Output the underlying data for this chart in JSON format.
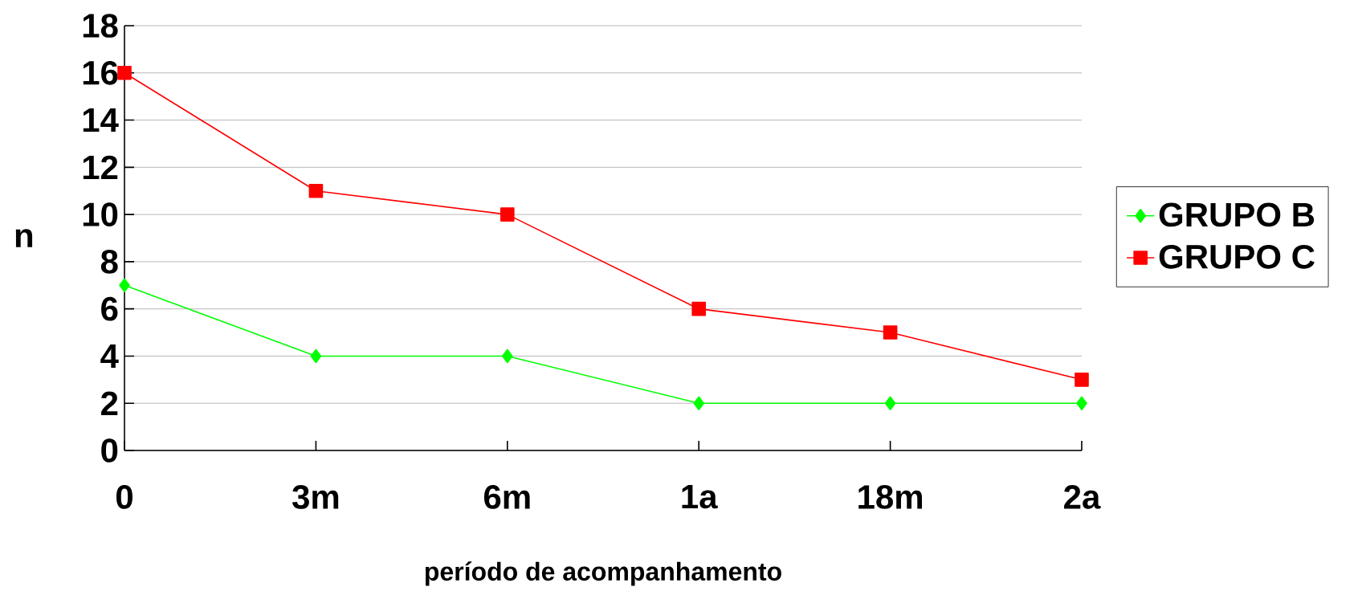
{
  "chart_data": {
    "type": "line",
    "xlabel": "período de acompanhamento",
    "ylabel": "n",
    "categories": [
      "0",
      "3m",
      "6m",
      "1a",
      "18m",
      "2a"
    ],
    "series": [
      {
        "name": "GRUPO B",
        "color": "#00ff00",
        "marker": "diamond",
        "values": [
          7,
          4,
          4,
          2,
          2,
          2
        ]
      },
      {
        "name": "GRUPO C",
        "color": "#ff0000",
        "marker": "square",
        "values": [
          16,
          11,
          10,
          6,
          5,
          3
        ]
      }
    ],
    "ylim": [
      0,
      18
    ],
    "yticks": [
      0,
      2,
      4,
      6,
      8,
      10,
      12,
      14,
      16,
      18
    ],
    "grid": "y",
    "legend": "right"
  }
}
